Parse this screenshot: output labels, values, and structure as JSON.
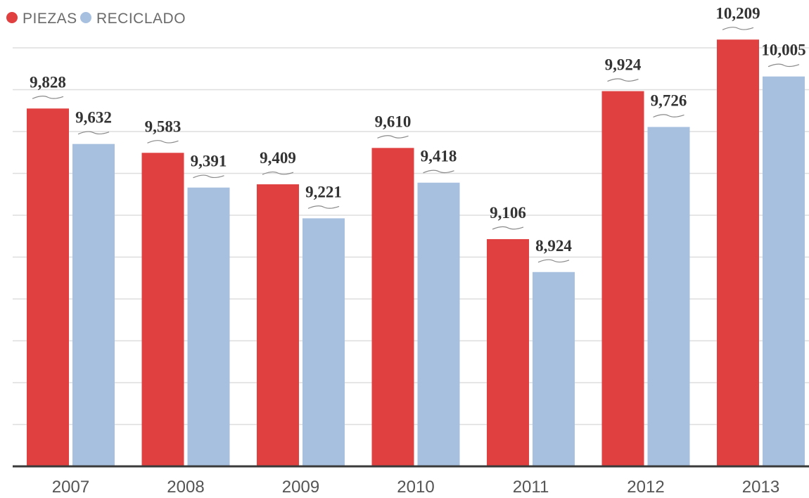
{
  "chart_data": {
    "type": "bar",
    "title": "",
    "xlabel": "",
    "ylabel": "",
    "categories": [
      "2007",
      "2008",
      "2009",
      "2010",
      "2011",
      "2012",
      "2013"
    ],
    "series": [
      {
        "name": "PIEZAS",
        "color": "#e04040",
        "values": [
          9828,
          9583,
          9409,
          9610,
          9106,
          9924,
          10209
        ],
        "labels": [
          "9,828",
          "9,583",
          "9,409",
          "9,610",
          "9,106",
          "9,924",
          "10,209"
        ]
      },
      {
        "name": "RECICLADO",
        "color": "#a8c0e0",
        "values": [
          9632,
          9391,
          9221,
          9418,
          8924,
          9726,
          10005
        ],
        "labels": [
          "9,632",
          "9,391",
          "9,221",
          "9,418",
          "8,924",
          "9,726",
          "10,005"
        ]
      }
    ],
    "ylim": [
      7850,
      10350
    ],
    "grid": true,
    "legend": "top-left"
  }
}
